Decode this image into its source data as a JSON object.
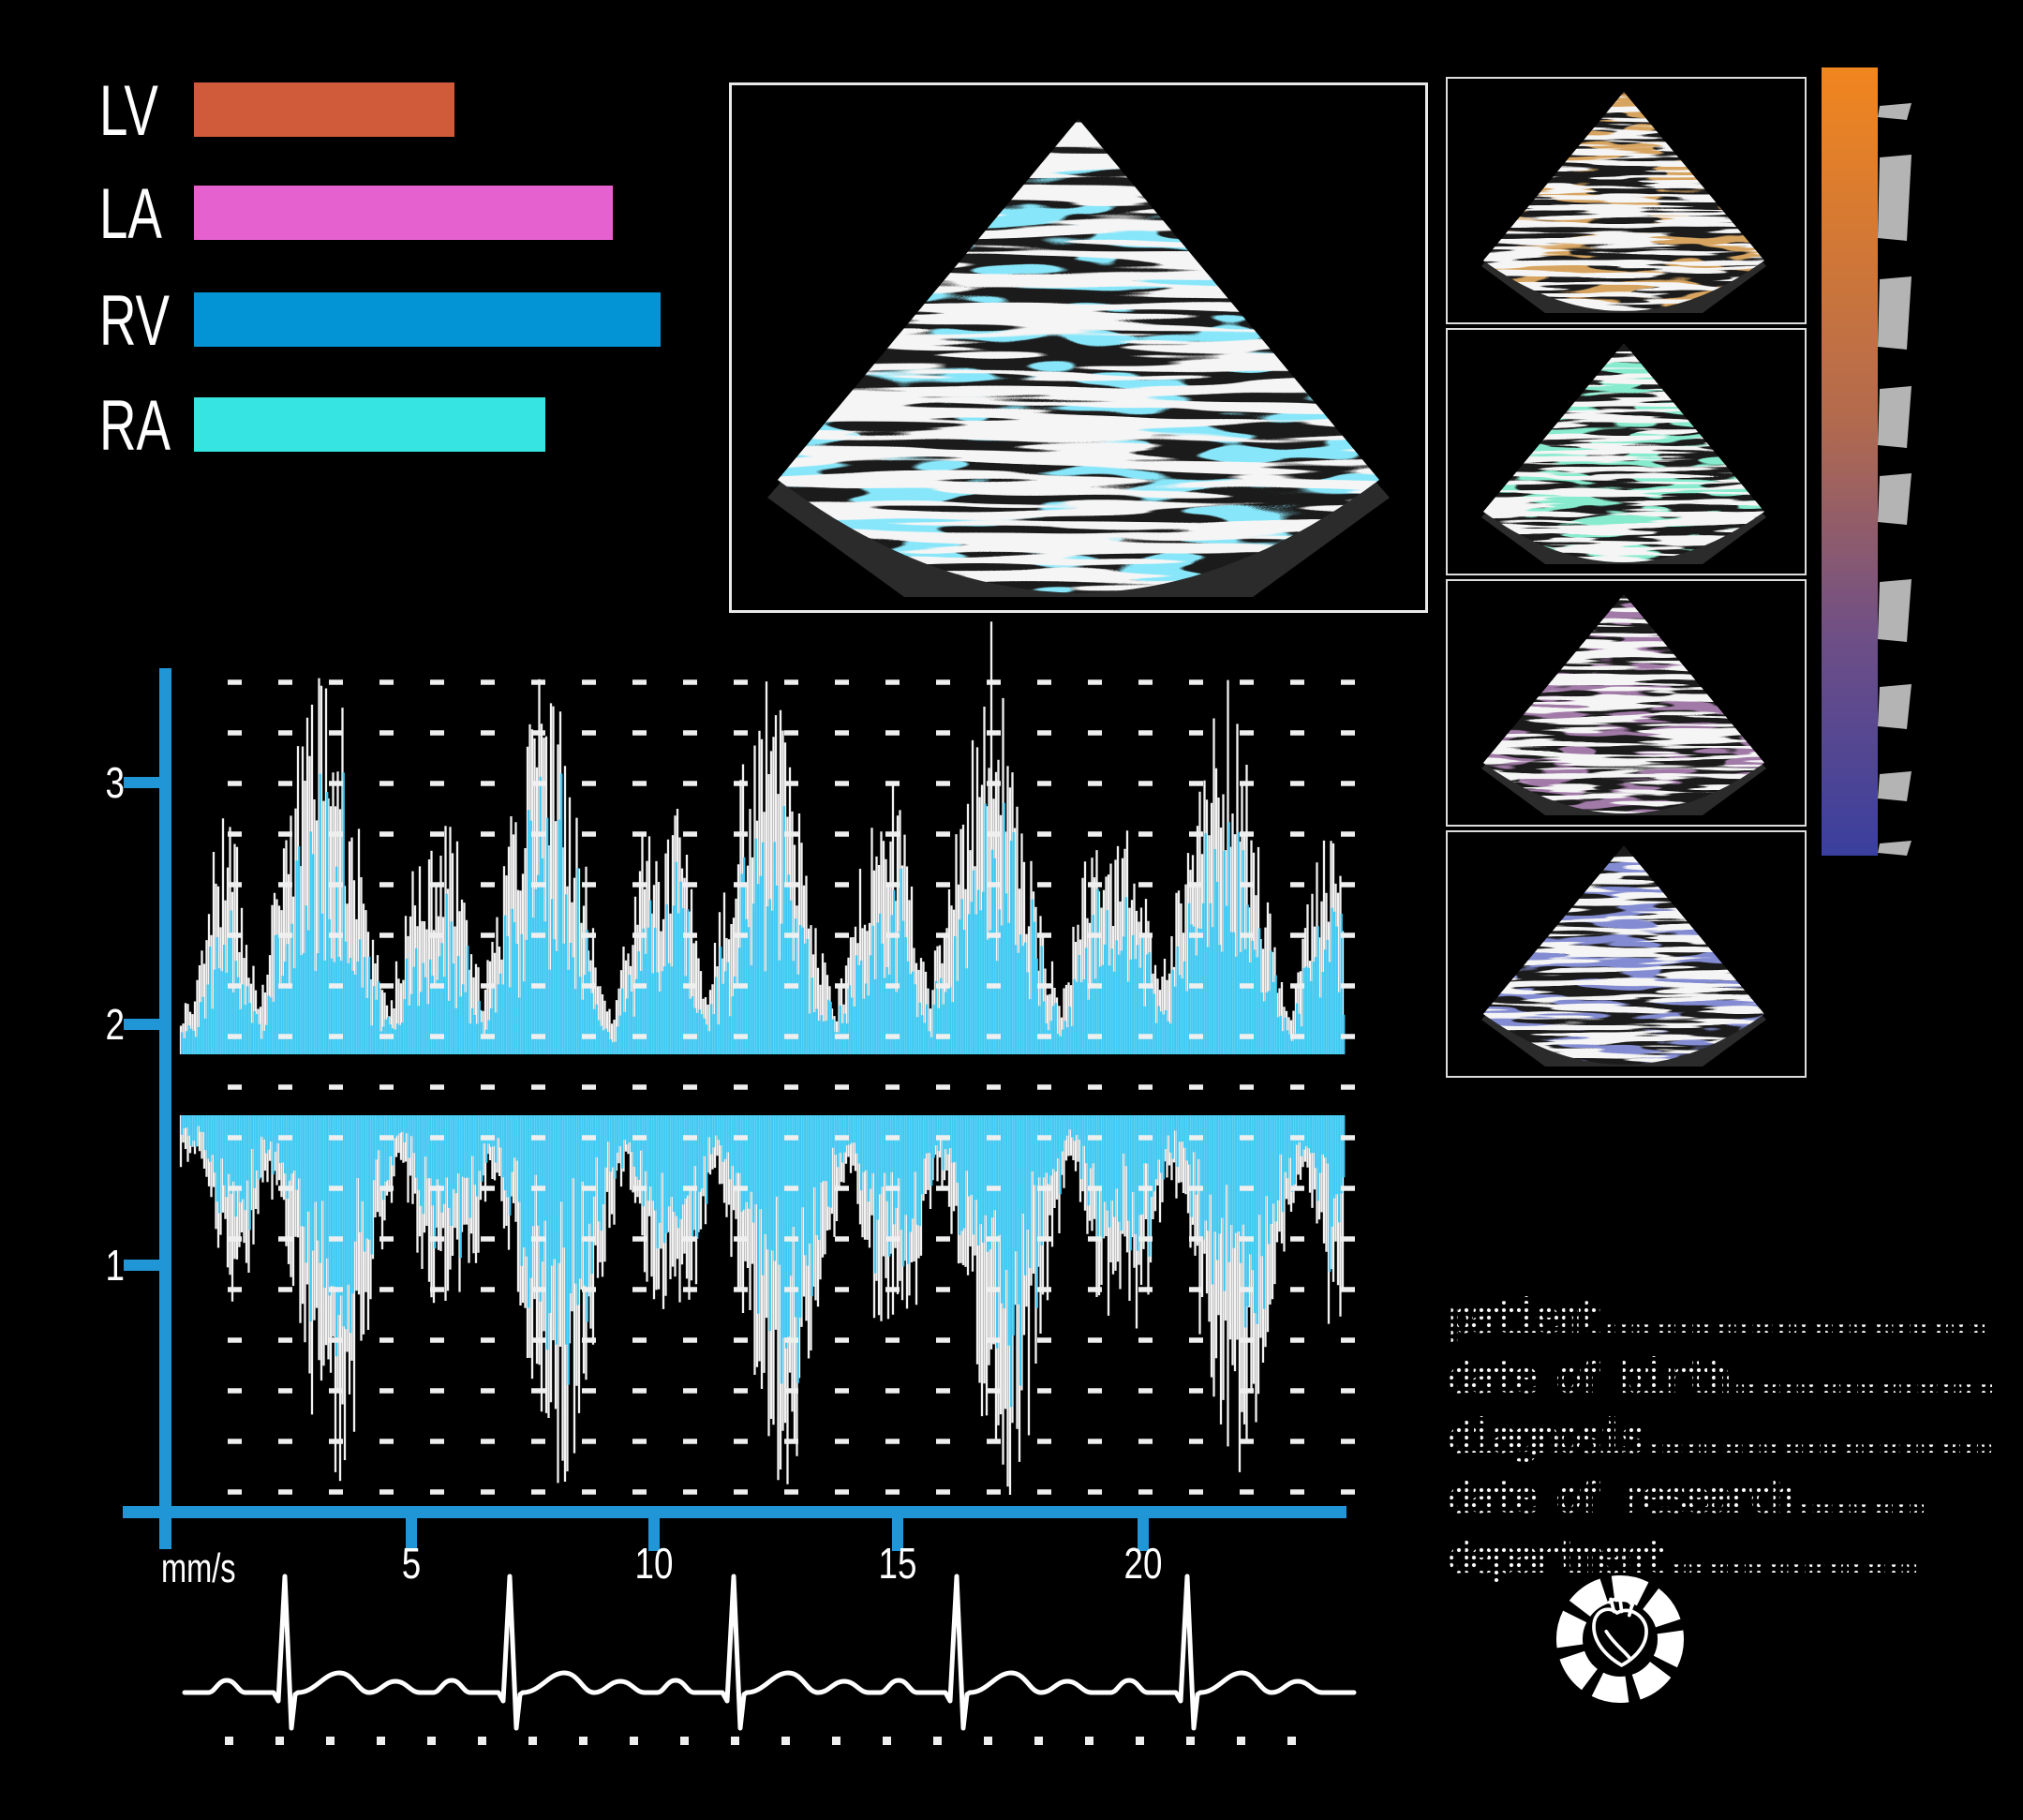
{
  "app": {
    "background": "#000000"
  },
  "legend": {
    "items": [
      {
        "label": "LV",
        "color": "#cf5b3a",
        "length": 278
      },
      {
        "label": "LA",
        "color": "#e561d0",
        "length": 447
      },
      {
        "label": "RV",
        "color": "#0294d5",
        "length": 498
      },
      {
        "label": "RA",
        "color": "#36e4e1",
        "length": 375
      }
    ]
  },
  "main_view": {
    "speckle_white": "#e9e9e9",
    "speckle_cyan": "#3ec9f2",
    "base": "#1b1b1b",
    "wing": "#2b2b2b"
  },
  "thumbnails": [
    {
      "name": "thumbnail-orange",
      "tint": "#ad5f1e"
    },
    {
      "name": "thumbnail-green",
      "tint": "#3ed49c"
    },
    {
      "name": "thumbnail-purple",
      "tint": "#5b3263"
    },
    {
      "name": "thumbnail-blue",
      "tint": "#3a43a4"
    }
  ],
  "colorbar": {
    "stops": [
      "#f1861e",
      "#b26a4e",
      "#6f4f86",
      "#3a3f9e"
    ],
    "tick_color": "#b4b4b4"
  },
  "doppler": {
    "axis_color": "#2196d6",
    "trace_white": "#f2f2f2",
    "trace_cyan": "#3ec9f2",
    "grid_dash_color": "#efefef",
    "unit_label": "mm/s",
    "y_ticks": [
      {
        "label": "3"
      },
      {
        "label": "2"
      },
      {
        "label": "1"
      }
    ],
    "x_ticks": [
      {
        "label": "5"
      },
      {
        "label": "10"
      },
      {
        "label": "15"
      },
      {
        "label": "20"
      }
    ]
  },
  "ecg": {
    "color": "#ffffff"
  },
  "form": {
    "lines": [
      {
        "label": "patient",
        "dots": "................................"
      },
      {
        "label": "date of birth",
        "dots": "......................"
      },
      {
        "label": "diagnosis",
        "dots": "............................."
      },
      {
        "label": "date of research",
        "dots": "..........."
      },
      {
        "label": "department",
        "dots": "....................."
      }
    ]
  },
  "logo": {
    "color": "#ffffff"
  }
}
